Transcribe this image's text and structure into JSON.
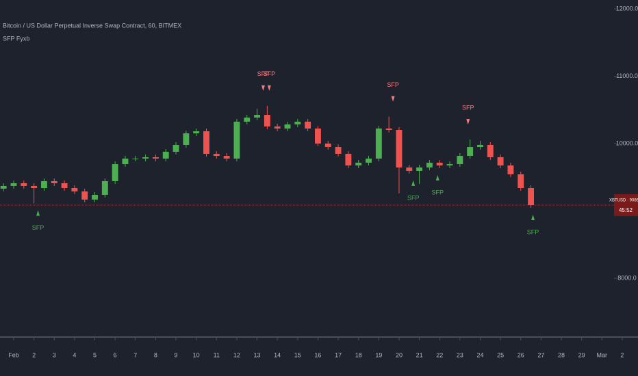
{
  "chart_data": {
    "type": "candlestick",
    "title": "Bitcoin / US Dollar Perpetual Inverse Swap Contract, 60, BITMEX",
    "indicator": "SFP Fyxb",
    "x": [
      -0.5,
      0,
      0.5,
      1,
      1.5,
      2,
      2.5,
      3,
      3.5,
      4,
      4.5,
      5,
      5.5,
      6,
      6.5,
      7,
      7.5,
      8,
      8.5,
      9,
      9.5,
      10,
      10.5,
      11,
      11.5,
      12,
      12.5,
      13,
      13.5,
      14,
      14.5,
      15,
      15.5,
      16,
      16.5,
      17,
      17.5,
      18,
      18.5,
      19,
      19.5,
      20,
      20.5,
      21,
      21.5,
      22,
      22.5,
      23,
      23.5,
      24,
      24.5,
      25,
      25.5
    ],
    "open": [
      9330,
      9371,
      9411,
      9371,
      9340,
      9442,
      9411,
      9340,
      9289,
      9168,
      9239,
      9442,
      9695,
      9777,
      9777,
      9797,
      9777,
      9878,
      9980,
      10152,
      10183,
      9848,
      9817,
      9777,
      10325,
      10386,
      10426,
      10254,
      10223,
      10284,
      10325,
      10223,
      10000,
      9949,
      9848,
      9675,
      9716,
      9777,
      10223,
      10203,
      9645,
      9594,
      9645,
      9716,
      9675,
      9695,
      9817,
      9949,
      9980,
      9797,
      9675,
      9543,
      9340
    ],
    "high": [
      9411,
      9451,
      9451,
      9411,
      9482,
      9482,
      9451,
      9380,
      9329,
      9279,
      9482,
      9735,
      9817,
      9817,
      9837,
      9837,
      9918,
      10020,
      10192,
      10223,
      10223,
      9888,
      9857,
      10365,
      10426,
      10520,
      10560,
      10294,
      10324,
      10365,
      10365,
      10263,
      10040,
      9989,
      9888,
      9756,
      9817,
      10263,
      10400,
      10243,
      9685,
      9685,
      9756,
      9756,
      9735,
      9857,
      10060,
      10040,
      10020,
      9837,
      9715,
      9583,
      9380
    ],
    "low": [
      9290,
      9331,
      9331,
      9110,
      9300,
      9371,
      9300,
      9249,
      9128,
      9128,
      9199,
      9402,
      9655,
      9737,
      9737,
      9737,
      9737,
      9838,
      9940,
      10112,
      9808,
      9777,
      9737,
      9737,
      10285,
      10346,
      10214,
      10183,
      10183,
      10244,
      10183,
      9960,
      9909,
      9808,
      9635,
      9635,
      9676,
      9737,
      10163,
      9260,
      9554,
      9400,
      9605,
      9635,
      9635,
      9655,
      9777,
      9909,
      9757,
      9635,
      9503,
      9300,
      9046
    ],
    "close": [
      9371,
      9411,
      9371,
      9340,
      9442,
      9411,
      9340,
      9289,
      9168,
      9239,
      9442,
      9695,
      9777,
      9777,
      9797,
      9777,
      9878,
      9980,
      10152,
      10183,
      9848,
      9817,
      9777,
      10325,
      10386,
      10426,
      10254,
      10223,
      10284,
      10325,
      10223,
      10000,
      9949,
      9848,
      9675,
      9716,
      9777,
      10223,
      10203,
      9645,
      9594,
      9645,
      9716,
      9675,
      9695,
      9817,
      9949,
      9980,
      9797,
      9675,
      9543,
      9340,
      9086
    ],
    "up_color": "#4caf50",
    "down_color": "#ef5350",
    "xlim": [
      -0.675,
      30.78
    ],
    "ylim": [
      7137,
      12132
    ],
    "yticks": [
      {
        "value": 8000,
        "label": "8000.0"
      },
      {
        "value": 9000,
        "label": "9000.0"
      },
      {
        "value": 10000,
        "label": "10000.0"
      },
      {
        "value": 11000,
        "label": "11000.0"
      },
      {
        "value": 12000,
        "label": "12000.0"
      }
    ],
    "xticks": [
      {
        "value": 0,
        "label": "Feb"
      },
      {
        "value": 1,
        "label": "2"
      },
      {
        "value": 2,
        "label": "3"
      },
      {
        "value": 3,
        "label": "4"
      },
      {
        "value": 4,
        "label": "5"
      },
      {
        "value": 5,
        "label": "6"
      },
      {
        "value": 6,
        "label": "7"
      },
      {
        "value": 7,
        "label": "8"
      },
      {
        "value": 8,
        "label": "9"
      },
      {
        "value": 9,
        "label": "10"
      },
      {
        "value": 10,
        "label": "11"
      },
      {
        "value": 11,
        "label": "12"
      },
      {
        "value": 12,
        "label": "13"
      },
      {
        "value": 13,
        "label": "14"
      },
      {
        "value": 14,
        "label": "15"
      },
      {
        "value": 15,
        "label": "16"
      },
      {
        "value": 16,
        "label": "17"
      },
      {
        "value": 17,
        "label": "18"
      },
      {
        "value": 18,
        "label": "19"
      },
      {
        "value": 19,
        "label": "20"
      },
      {
        "value": 20,
        "label": "21"
      },
      {
        "value": 21,
        "label": "22"
      },
      {
        "value": 22,
        "label": "23"
      },
      {
        "value": 23,
        "label": "24"
      },
      {
        "value": 24,
        "label": "25"
      },
      {
        "value": 25,
        "label": "26"
      },
      {
        "value": 26,
        "label": "27"
      },
      {
        "value": 27,
        "label": "28"
      },
      {
        "value": 28,
        "label": "29"
      },
      {
        "value": 29,
        "label": "Mar"
      },
      {
        "value": 30,
        "label": "2"
      }
    ],
    "annotations": [
      {
        "text": "SFP",
        "x": 12.3,
        "direction": "down"
      },
      {
        "text": "SFP",
        "x": 12.6,
        "direction": "down"
      },
      {
        "text": "SFP",
        "x": 18.7,
        "direction": "down"
      },
      {
        "text": "SFP",
        "x": 22.4,
        "direction": "down"
      },
      {
        "text": "SFP",
        "x": 1.2,
        "direction": "up"
      },
      {
        "text": "SFP",
        "x": 19.7,
        "direction": "up"
      },
      {
        "text": "SFP",
        "x": 20.9,
        "direction": "up"
      },
      {
        "text": "SFP",
        "x": 25.6,
        "direction": "up"
      }
    ],
    "annotation_colors": {
      "down": "#f77c80",
      "up": "#4caf50"
    },
    "last_price_label": "XBTUSD · 9086.0",
    "countdown": "45:52",
    "last_price_color": "#7a1a1a"
  }
}
